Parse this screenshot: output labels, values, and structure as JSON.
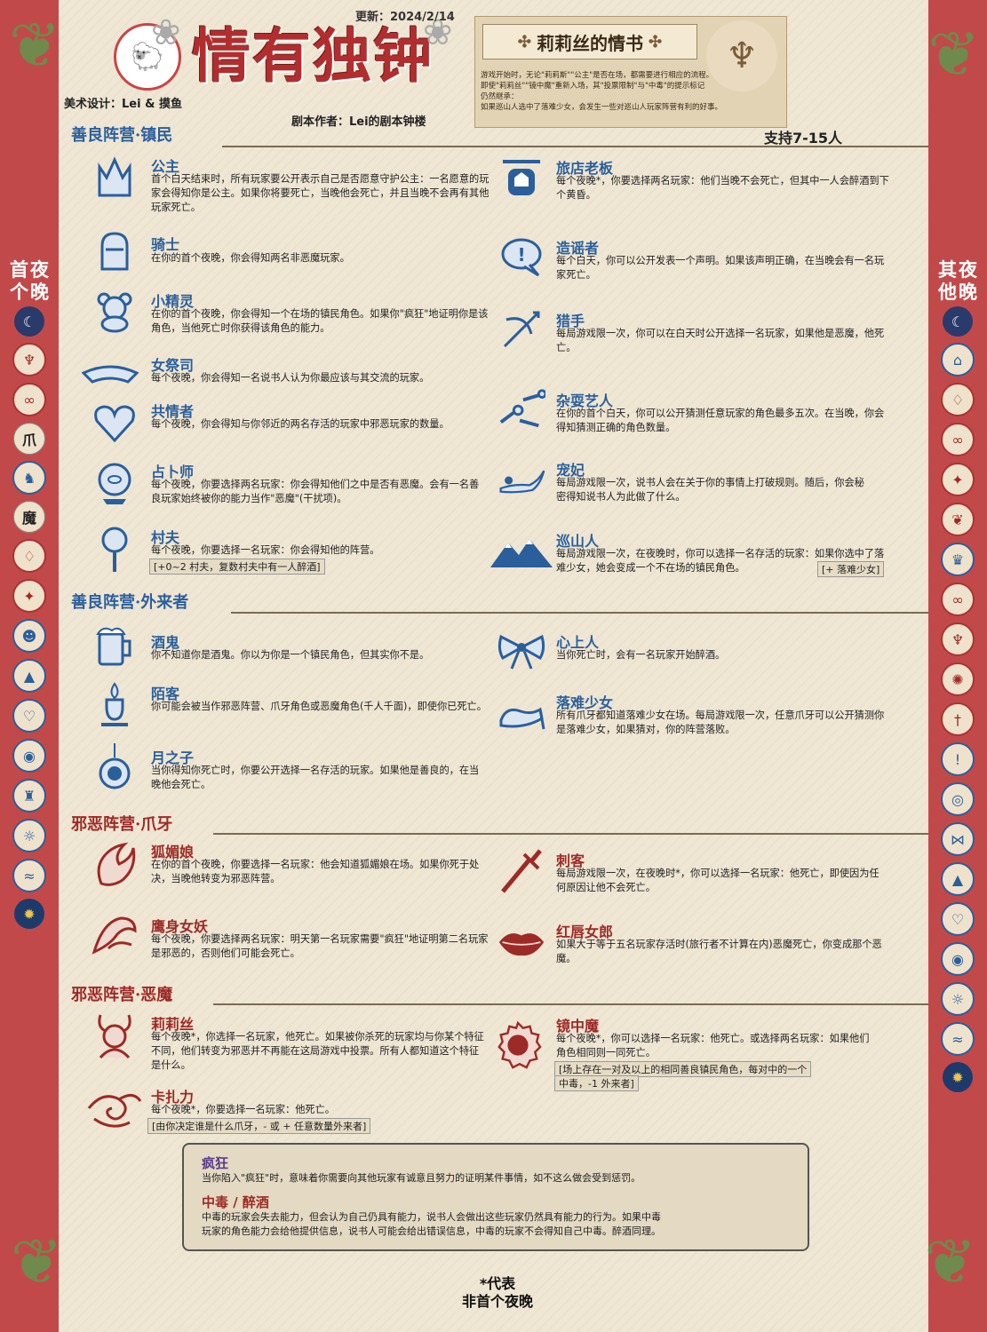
{
  "header": {
    "title": "情有独钟",
    "update": "更新：2024/2/14",
    "art_design": "美术设计：Lei & 摸鱼",
    "author": "剧本作者：Lei的剧本钟楼",
    "support": "支持7-15人"
  },
  "banner": {
    "title": "莉莉丝的情书",
    "lines": [
      "游戏开始时，无论\"莉莉斯\"\"公主\"是否在场，都需要进行相应的流程。",
      "即使\"莉莉丝\"\"镜中魔\"重新入场，其\"投票限制\"与\"中毒\"的提示标记",
      "仍然继承：",
      "如果巡山人选中了落难少女，会发生一些对巡山人玩家阵营有利的好事。"
    ]
  },
  "side": {
    "left_title": [
      "首",
      "夜",
      "个",
      "晚"
    ],
    "right_title": [
      "其",
      "夜",
      "他",
      "晚"
    ]
  },
  "sections": {
    "townsfolk": "善良阵营·镇民",
    "outsiders": "善良阵营·外来者",
    "minions": "邪恶阵营·爪牙",
    "demons": "邪恶阵营·恶魔"
  },
  "roles": {
    "princess": {
      "name": "公主",
      "desc": "首个白天结束时，所有玩家要公开表示自己是否愿意守护公主：一名愿意的玩家会得知你是公主。如果你将要死亡，当晚他会死亡，并且当晚不会再有其他玩家死亡。"
    },
    "knight": {
      "name": "骑士",
      "desc": "在你的首个夜晚，你会得知两名非恶魔玩家。"
    },
    "elf": {
      "name": "小精灵",
      "desc": "在你的首个夜晚，你会得知一个在场的镇民角色。如果你\"疯狂\"地证明你是该角色，当他死亡时你获得该角色的能力。"
    },
    "priestess": {
      "name": "女祭司",
      "desc": "每个夜晚，你会得知一名说书人认为你最应该与其交流的玩家。"
    },
    "empath": {
      "name": "共情者",
      "desc": "每个夜晚，你会得知与你邻近的两名存活的玩家中邪恶玩家的数量。"
    },
    "fortune": {
      "name": "占卜师",
      "desc": "每个夜晚，你要选择两名玩家：你会得知他们之中是否有恶魔。会有一名善良玩家始终被你的能力当作\"恶魔\"(干扰项)。"
    },
    "villager": {
      "name": "村夫",
      "desc": "每个夜晚，你要选择一名玩家：你会得知他的阵营。",
      "note": "[+0~2 村夫，复数村夫中有一人醉酒]"
    },
    "innkeeper": {
      "name": "旅店老板",
      "desc": "每个夜晚*，你要选择两名玩家：他们当晚不会死亡，但其中一人会醉酒到下个黄昏。"
    },
    "rumor": {
      "name": "造谣者",
      "desc": "每个白天，你可以公开发表一个声明。如果该声明正确，在当晚会有一名玩家死亡。"
    },
    "hunter": {
      "name": "猎手",
      "desc": "每局游戏限一次，你可以在白天时公开选择一名玩家，如果他是恶魔，他死亡。"
    },
    "juggler": {
      "name": "杂耍艺人",
      "desc": "在你的首个白天，你可以公开猜测任意玩家的角色最多五次。在当晚，你会得知猜测正确的角色数量。"
    },
    "concubine": {
      "name": "宠妃",
      "desc": "每局游戏限一次，说书人会在关于你的事情上打破规则。随后，你会秘密得知说书人为此做了什么。"
    },
    "ranger": {
      "name": "巡山人",
      "desc": "每局游戏限一次，在夜晚时，你可以选择一名存活的玩家：如果你选中了落难少女，她会变成一个不在场的镇民角色。",
      "note": "[+ 落难少女]"
    },
    "drunk": {
      "name": "酒鬼",
      "desc": "你不知道你是酒鬼。你以为你是一个镇民角色，但其实你不是。"
    },
    "stranger": {
      "name": "陌客",
      "desc": "你可能会被当作邪恶阵营、爪牙角色或恶魔角色(千人千面)，即使你已死亡。"
    },
    "moonchild": {
      "name": "月之子",
      "desc": "当你得知你死亡时，你要公开选择一名存活的玩家。如果他是善良的，在当晚他会死亡。"
    },
    "sweetheart": {
      "name": "心上人",
      "desc": "当你死亡时，会有一名玩家开始醉酒。"
    },
    "damsel": {
      "name": "落难少女",
      "desc": "所有爪牙都知道落难少女在场。每局游戏限一次，任意爪牙可以公开猜测你是落难少女，如果猜对，你的阵营落败。"
    },
    "vixen": {
      "name": "狐媚娘",
      "desc": "在你的首个夜晚，你要选择一名玩家：他会知道狐媚娘在场。如果你死于处决，当晚他转变为邪恶阵营。"
    },
    "harpy": {
      "name": "鹰身女妖",
      "desc": "每个夜晚，你要选择两名玩家：明天第一名玩家需要\"疯狂\"地证明第二名玩家是邪恶的，否则他们可能会死亡。"
    },
    "assassin": {
      "name": "刺客",
      "desc": "每局游戏限一次，在夜晚时*，你可以选择一名玩家：他死亡，即使因为任何原因让他不会死亡。"
    },
    "lipstick": {
      "name": "红唇女郎",
      "desc": "如果大于等于五名玩家存活时(旅行者不计算在内)恶魔死亡，你变成那个恶魔。"
    },
    "lilith": {
      "name": "莉莉丝",
      "desc": "每个夜晚*，你选择一名玩家，他死亡。如果被你杀死的玩家均与你某个特征不同，他们转变为邪恶并不再能在这局游戏中投票。所有人都知道这个特征是什么。"
    },
    "kazali": {
      "name": "卡扎力",
      "desc": "每个夜晚*，你要选择一名玩家：他死亡。",
      "note": "[由你决定谁是什么爪牙，- 或 + 任意数量外来者]"
    },
    "mirror": {
      "name": "镜中魔",
      "desc": "每个夜晚*，你可以选择一名玩家：他死亡。或选择两名玩家：如果他们角色相同则一同死亡。",
      "note1": "[场上存在一对及以上的相同善良镇民角色，每对中的一个",
      "note2": "中毒，-1 外来者]"
    }
  },
  "glossary": {
    "madness_name": "疯狂",
    "madness_text": "当你陷入\"疯狂\"时，意味着你需要向其他玩家有诚意且努力的证明某件事情，如不这么做会受到惩罚。",
    "poison_name": "中毒 / 醉酒",
    "poison_text1": "中毒的玩家会失去能力，但会认为自己仍具有能力，说书人会做出这些玩家仍然具有能力的行为。如果中毒",
    "poison_text2": "玩家的角色能力会给他提供信息，说书人可能会给出错误信息，中毒的玩家不会得知自己中毒。醉酒同理。"
  },
  "footer": {
    "line1": "*代表",
    "line2": "非首个夜晚"
  },
  "colors": {
    "good": "#2a5f9c",
    "evil": "#9c2a26",
    "paper": "#efe6d4",
    "border_red": "#c2494a"
  },
  "icons": {
    "left_column": [
      "moon-icon",
      "lilith-icon",
      "kazali-icon",
      "minion-text-icon",
      "damsel-icon",
      "demon-text-icon",
      "harpy-icon",
      "vixen-icon",
      "elf-icon",
      "ranger-icon",
      "empath-icon",
      "fortune-icon",
      "knight-icon",
      "villager-icon",
      "priestess-icon",
      "sun-icon"
    ],
    "right_column": [
      "moon-icon",
      "innkeeper-icon",
      "harpy-icon",
      "kazali-icon",
      "vixen-icon",
      "lipstick-icon",
      "princess-icon",
      "kazali-icon",
      "lilith-icon",
      "mirror-icon",
      "assassin-icon",
      "rumor-icon",
      "moonchild-icon",
      "sweetheart-icon",
      "ranger-icon",
      "empath-icon",
      "fortune-icon",
      "villager-icon",
      "priestess-icon",
      "sun-icon"
    ],
    "left_text_1": "爪",
    "left_text_2": "魔"
  }
}
